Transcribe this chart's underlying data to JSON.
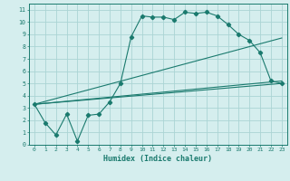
{
  "xlabel": "Humidex (Indice chaleur)",
  "xlim": [
    -0.5,
    23.5
  ],
  "ylim": [
    0,
    11.5
  ],
  "xticks": [
    0,
    1,
    2,
    3,
    4,
    5,
    6,
    7,
    8,
    9,
    10,
    11,
    12,
    13,
    14,
    15,
    16,
    17,
    18,
    19,
    20,
    21,
    22,
    23
  ],
  "yticks": [
    0,
    1,
    2,
    3,
    4,
    5,
    6,
    7,
    8,
    9,
    10,
    11
  ],
  "bg_color": "#d5eeee",
  "grid_color": "#aad4d4",
  "line_color": "#1a7a6e",
  "series1_x": [
    0,
    1,
    2,
    3,
    4,
    5,
    6,
    7,
    8,
    9,
    10,
    11,
    12,
    13,
    14,
    15,
    16,
    17,
    18,
    19,
    20,
    21,
    22,
    23
  ],
  "series1_y": [
    3.3,
    1.8,
    0.8,
    2.5,
    0.3,
    2.4,
    2.5,
    3.5,
    5.0,
    8.8,
    10.5,
    10.4,
    10.4,
    10.2,
    10.8,
    10.7,
    10.8,
    10.5,
    9.8,
    9.0,
    8.5,
    7.5,
    5.2,
    5.0
  ],
  "series2_x": [
    0,
    23
  ],
  "series2_y": [
    3.3,
    5.0
  ],
  "series3_x": [
    0,
    23
  ],
  "series3_y": [
    3.3,
    8.7
  ],
  "series4_x": [
    0,
    23
  ],
  "series4_y": [
    3.3,
    5.2
  ]
}
